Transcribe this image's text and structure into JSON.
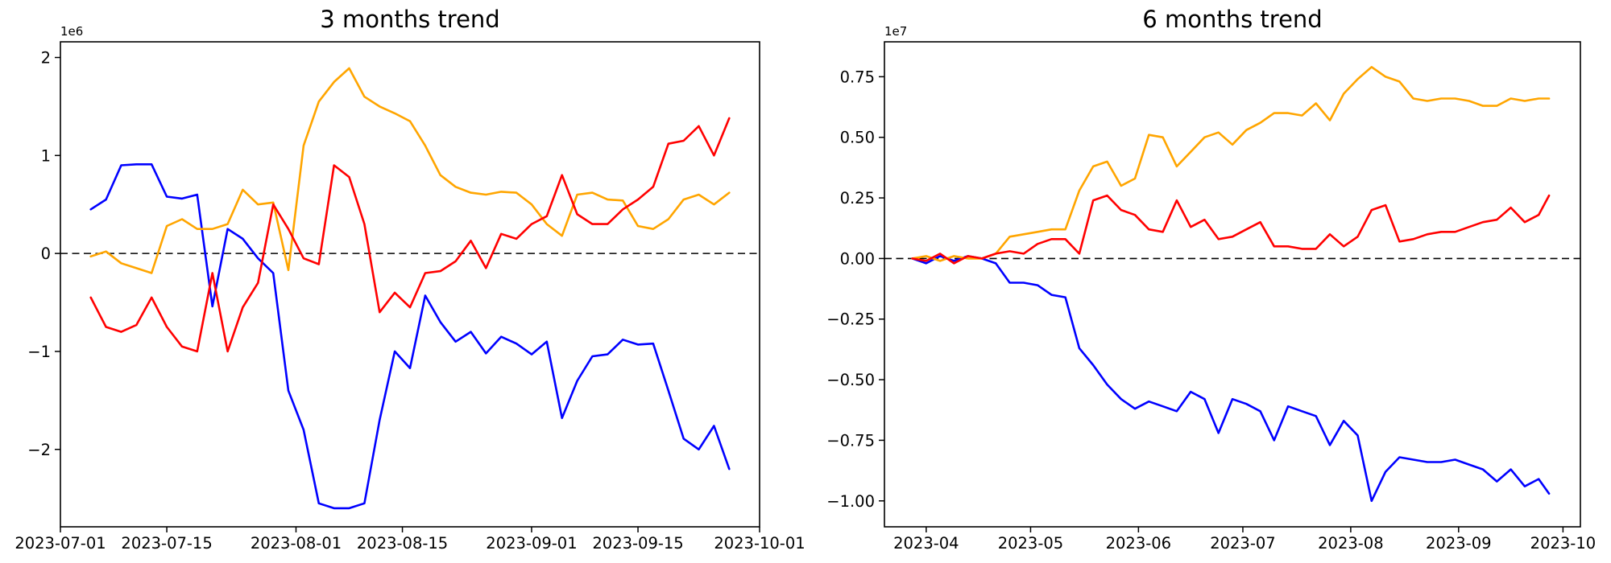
{
  "figure": {
    "background": "#ffffff"
  },
  "chart_data": [
    {
      "type": "line",
      "title": "3 months trend",
      "offset_text": "1e6",
      "value_multiplier": 1000000,
      "grid": false,
      "legend": null,
      "x_axis_range": [
        "2023-07-01",
        "2023-10-01"
      ],
      "x_ticks": [
        {
          "date": "2023-07-01",
          "label": "2023-07-01"
        },
        {
          "date": "2023-07-15",
          "label": "2023-07-15"
        },
        {
          "date": "2023-08-01",
          "label": "2023-08-01"
        },
        {
          "date": "2023-08-15",
          "label": "2023-08-15"
        },
        {
          "date": "2023-09-01",
          "label": "2023-09-01"
        },
        {
          "date": "2023-09-15",
          "label": "2023-09-15"
        },
        {
          "date": "2023-10-01",
          "label": "2023-10-01"
        }
      ],
      "ylim": [
        -2.79,
        2.16
      ],
      "y_ticks": [
        {
          "value": 2,
          "label": "2"
        },
        {
          "value": 1,
          "label": "1"
        },
        {
          "value": 0,
          "label": "0"
        },
        {
          "value": -1,
          "label": "−1"
        },
        {
          "value": -2,
          "label": "−2"
        }
      ],
      "zero_line": {
        "style": "dashed",
        "color": "#000000",
        "value": 0
      },
      "x_dates": [
        "2023-07-05",
        "2023-07-07",
        "2023-07-09",
        "2023-07-11",
        "2023-07-13",
        "2023-07-15",
        "2023-07-17",
        "2023-07-19",
        "2023-07-21",
        "2023-07-23",
        "2023-07-25",
        "2023-07-27",
        "2023-07-29",
        "2023-07-31",
        "2023-08-02",
        "2023-08-04",
        "2023-08-06",
        "2023-08-08",
        "2023-08-10",
        "2023-08-12",
        "2023-08-14",
        "2023-08-16",
        "2023-08-18",
        "2023-08-20",
        "2023-08-22",
        "2023-08-24",
        "2023-08-26",
        "2023-08-28",
        "2023-08-30",
        "2023-09-01",
        "2023-09-03",
        "2023-09-05",
        "2023-09-07",
        "2023-09-09",
        "2023-09-11",
        "2023-09-13",
        "2023-09-15",
        "2023-09-17",
        "2023-09-19",
        "2023-09-21",
        "2023-09-23",
        "2023-09-25",
        "2023-09-27"
      ],
      "series": [
        {
          "name": "blue",
          "color": "#0000ff",
          "values": [
            0.45,
            0.55,
            0.9,
            0.91,
            0.91,
            0.58,
            0.56,
            0.6,
            -0.54,
            0.25,
            0.15,
            -0.05,
            -0.2,
            -1.4,
            -1.8,
            -2.55,
            -2.6,
            -2.6,
            -2.55,
            -1.7,
            -1.0,
            -1.17,
            -0.43,
            -0.7,
            -0.9,
            -0.8,
            -1.02,
            -0.85,
            -0.92,
            -1.03,
            -0.9,
            -1.68,
            -1.3,
            -1.05,
            -1.03,
            -0.88,
            -0.93,
            -0.92,
            -1.4,
            -1.89,
            -2.0,
            -1.76,
            -2.2
          ]
        },
        {
          "name": "orange",
          "color": "#ffa500",
          "values": [
            -0.03,
            0.02,
            -0.1,
            -0.15,
            -0.2,
            0.28,
            0.35,
            0.25,
            0.25,
            0.3,
            0.65,
            0.5,
            0.52,
            -0.17,
            1.1,
            1.55,
            1.75,
            1.89,
            1.6,
            1.5,
            1.43,
            1.35,
            1.1,
            0.8,
            0.68,
            0.62,
            0.6,
            0.63,
            0.62,
            0.5,
            0.3,
            0.18,
            0.6,
            0.62,
            0.55,
            0.54,
            0.28,
            0.25,
            0.35,
            0.55,
            0.6,
            0.5,
            0.62
          ]
        },
        {
          "name": "red",
          "color": "#ff0000",
          "values": [
            -0.45,
            -0.75,
            -0.8,
            -0.73,
            -0.45,
            -0.75,
            -0.95,
            -1.0,
            -0.2,
            -1.0,
            -0.55,
            -0.3,
            0.5,
            0.25,
            -0.05,
            -0.11,
            0.9,
            0.78,
            0.3,
            -0.6,
            -0.4,
            -0.55,
            -0.2,
            -0.18,
            -0.08,
            0.13,
            -0.15,
            0.2,
            0.15,
            0.3,
            0.38,
            0.8,
            0.4,
            0.3,
            0.3,
            0.45,
            0.55,
            0.68,
            1.12,
            1.15,
            1.3,
            1.0,
            1.38
          ]
        }
      ]
    },
    {
      "type": "line",
      "title": "6 months trend",
      "offset_text": "1e7",
      "value_multiplier": 10000000,
      "grid": false,
      "legend": null,
      "x_axis_range": [
        "2023-03-20",
        "2023-10-06"
      ],
      "x_ticks": [
        {
          "date": "2023-04-01",
          "label": "2023-04"
        },
        {
          "date": "2023-05-01",
          "label": "2023-05"
        },
        {
          "date": "2023-06-01",
          "label": "2023-06"
        },
        {
          "date": "2023-07-01",
          "label": "2023-07"
        },
        {
          "date": "2023-08-01",
          "label": "2023-08"
        },
        {
          "date": "2023-09-01",
          "label": "2023-09"
        },
        {
          "date": "2023-10-01",
          "label": "2023-10"
        }
      ],
      "ylim": [
        -1.107,
        0.894
      ],
      "y_ticks": [
        {
          "value": 0.75,
          "label": "0.75"
        },
        {
          "value": 0.5,
          "label": "0.50"
        },
        {
          "value": 0.25,
          "label": "0.25"
        },
        {
          "value": 0,
          "label": "0.00"
        },
        {
          "value": -0.25,
          "label": "−0.25"
        },
        {
          "value": -0.5,
          "label": "−0.50"
        },
        {
          "value": -0.75,
          "label": "−0.75"
        },
        {
          "value": -1,
          "label": "−1.00"
        }
      ],
      "zero_line": {
        "style": "dashed",
        "color": "#000000",
        "value": 0
      },
      "x_dates": [
        "2023-03-28",
        "2023-04-01",
        "2023-04-05",
        "2023-04-09",
        "2023-04-13",
        "2023-04-17",
        "2023-04-21",
        "2023-04-25",
        "2023-04-29",
        "2023-05-03",
        "2023-05-07",
        "2023-05-11",
        "2023-05-15",
        "2023-05-19",
        "2023-05-23",
        "2023-05-27",
        "2023-05-31",
        "2023-06-04",
        "2023-06-08",
        "2023-06-12",
        "2023-06-16",
        "2023-06-20",
        "2023-06-24",
        "2023-06-28",
        "2023-07-02",
        "2023-07-06",
        "2023-07-10",
        "2023-07-14",
        "2023-07-18",
        "2023-07-22",
        "2023-07-26",
        "2023-07-30",
        "2023-08-03",
        "2023-08-07",
        "2023-08-11",
        "2023-08-15",
        "2023-08-19",
        "2023-08-23",
        "2023-08-27",
        "2023-08-31",
        "2023-09-04",
        "2023-09-08",
        "2023-09-12",
        "2023-09-16",
        "2023-09-20",
        "2023-09-24",
        "2023-09-27"
      ],
      "series": [
        {
          "name": "blue",
          "color": "#0000ff",
          "values": [
            0.0,
            -0.02,
            0.01,
            -0.01,
            0.01,
            0.0,
            -0.02,
            -0.1,
            -0.1,
            -0.11,
            -0.15,
            -0.16,
            -0.37,
            -0.44,
            -0.52,
            -0.58,
            -0.62,
            -0.59,
            -0.61,
            -0.63,
            -0.55,
            -0.58,
            -0.72,
            -0.58,
            -0.6,
            -0.63,
            -0.75,
            -0.61,
            -0.63,
            -0.65,
            -0.77,
            -0.67,
            -0.73,
            -1.0,
            -0.88,
            -0.82,
            -0.83,
            -0.84,
            -0.84,
            -0.83,
            -0.85,
            -0.87,
            -0.92,
            -0.87,
            -0.94,
            -0.91,
            -0.97
          ]
        },
        {
          "name": "orange",
          "color": "#ffa500",
          "values": [
            0.0,
            0.01,
            -0.01,
            0.01,
            0.0,
            0.0,
            0.02,
            0.09,
            0.1,
            0.11,
            0.12,
            0.12,
            0.28,
            0.38,
            0.4,
            0.3,
            0.33,
            0.51,
            0.5,
            0.38,
            0.44,
            0.5,
            0.52,
            0.47,
            0.53,
            0.56,
            0.6,
            0.6,
            0.59,
            0.64,
            0.57,
            0.68,
            0.74,
            0.79,
            0.75,
            0.73,
            0.66,
            0.65,
            0.66,
            0.66,
            0.65,
            0.63,
            0.63,
            0.66,
            0.65,
            0.66,
            0.66
          ]
        },
        {
          "name": "red",
          "color": "#ff0000",
          "values": [
            0.0,
            -0.01,
            0.02,
            -0.02,
            0.01,
            0.0,
            0.02,
            0.03,
            0.02,
            0.06,
            0.08,
            0.08,
            0.02,
            0.24,
            0.26,
            0.2,
            0.18,
            0.12,
            0.11,
            0.24,
            0.13,
            0.16,
            0.08,
            0.09,
            0.12,
            0.15,
            0.05,
            0.05,
            0.04,
            0.04,
            0.1,
            0.05,
            0.09,
            0.2,
            0.22,
            0.07,
            0.08,
            0.1,
            0.11,
            0.11,
            0.13,
            0.15,
            0.16,
            0.21,
            0.15,
            0.18,
            0.26
          ]
        }
      ]
    }
  ]
}
